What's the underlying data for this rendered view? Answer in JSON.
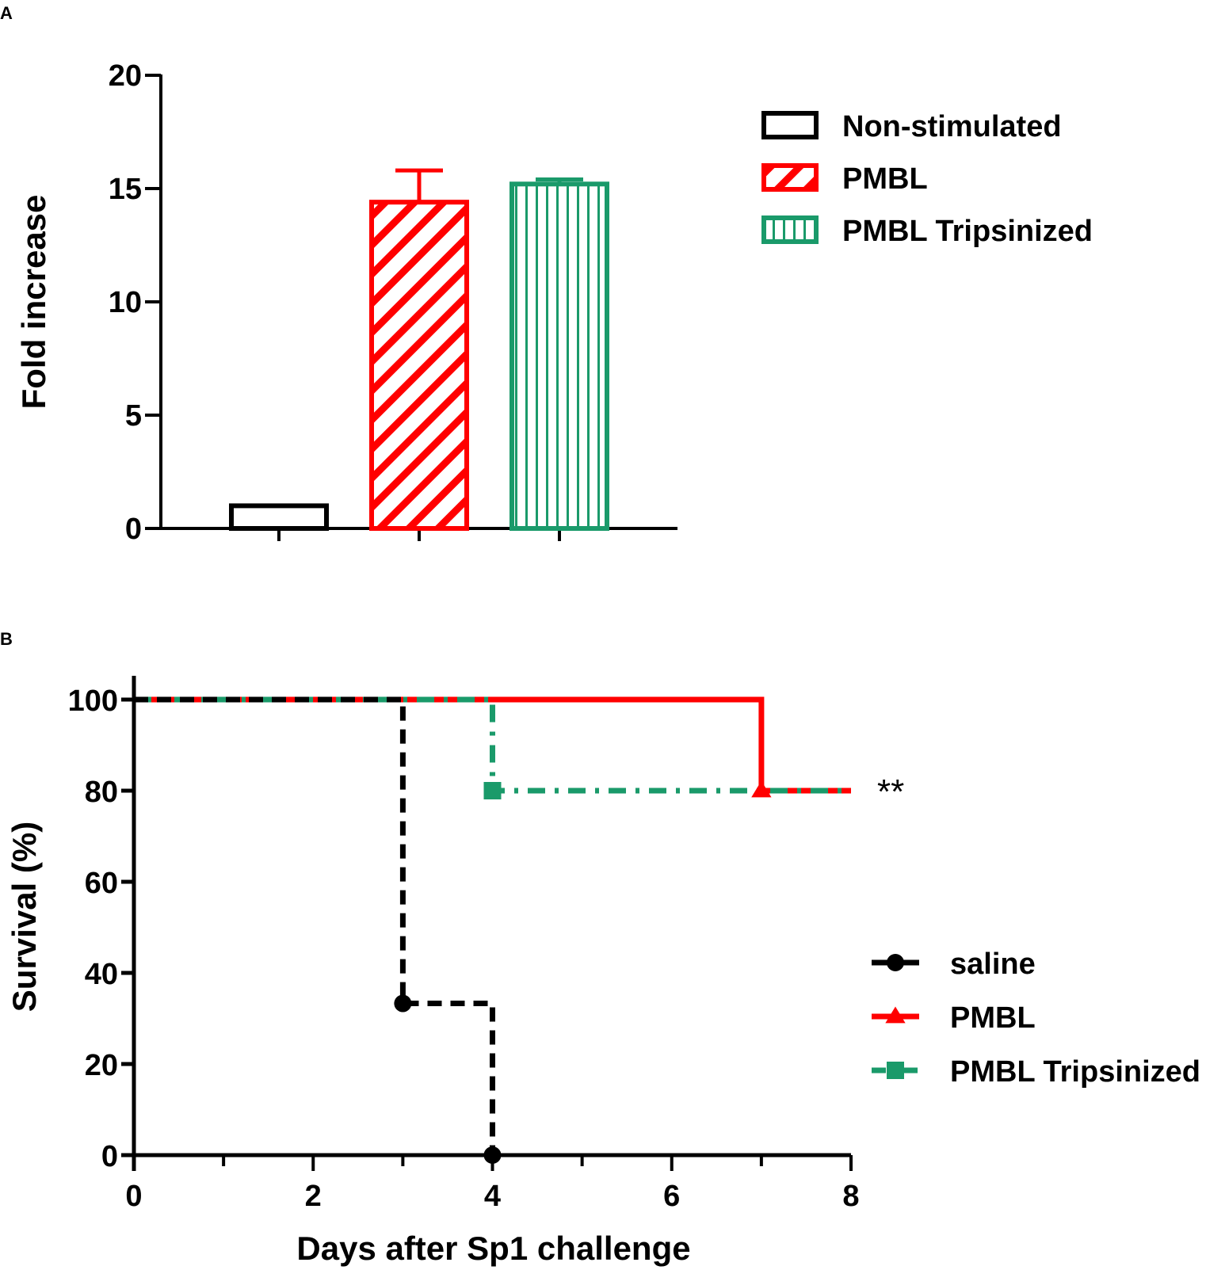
{
  "chart_data": [
    {
      "panel": "A",
      "type": "bar",
      "title": "",
      "xlabel": "",
      "ylabel": "Fold increase",
      "ylim": [
        0,
        20
      ],
      "yticks": [
        "0",
        "5",
        "10",
        "15",
        "20"
      ],
      "categories": [
        "Non-stimulated",
        "PMBL",
        "PMBL Tripsinized"
      ],
      "values": [
        1.0,
        14.4,
        15.2
      ],
      "errors": [
        0.0,
        1.4,
        0.2
      ],
      "colors": [
        "#000000",
        "#ff0000",
        "#1a9a6a"
      ],
      "patterns": [
        "none",
        "diagonal",
        "vertical"
      ],
      "legend": [
        "Non-stimulated",
        "PMBL",
        "PMBL Tripsinized"
      ],
      "legend_position": "top-right"
    },
    {
      "panel": "B",
      "type": "line",
      "title": "",
      "xlabel": "Days after Sp1 challenge",
      "ylabel": "Survival (%)",
      "xlim": [
        0,
        8
      ],
      "ylim": [
        0,
        100
      ],
      "xticks": [
        "0",
        "2",
        "4",
        "6",
        "8"
      ],
      "yticks": [
        "0",
        "20",
        "40",
        "60",
        "80",
        "100"
      ],
      "series": [
        {
          "name": "saline",
          "color": "#000000",
          "style": "dashed",
          "marker": "circle",
          "x": [
            0,
            3,
            3,
            4,
            4
          ],
          "y": [
            100,
            100,
            33.3,
            33.3,
            0
          ],
          "marker_points": [
            [
              3,
              33.3
            ],
            [
              4,
              0
            ]
          ]
        },
        {
          "name": "PMBL",
          "color": "#ff0000",
          "style": "solid",
          "marker": "triangle",
          "x": [
            0,
            7,
            7,
            8
          ],
          "y": [
            100,
            100,
            80,
            80
          ],
          "marker_points": [
            [
              7,
              80
            ]
          ]
        },
        {
          "name": "PMBL Tripsinized",
          "color": "#1a9a6a",
          "style": "dashdot",
          "marker": "square",
          "x": [
            0,
            4,
            4,
            8
          ],
          "y": [
            100,
            100,
            80,
            80
          ],
          "marker_points": [
            [
              4,
              80
            ]
          ]
        }
      ],
      "annotation": "**",
      "legend": [
        "saline",
        "PMBL",
        "PMBL Tripsinized"
      ],
      "legend_position": "bottom-right"
    }
  ]
}
